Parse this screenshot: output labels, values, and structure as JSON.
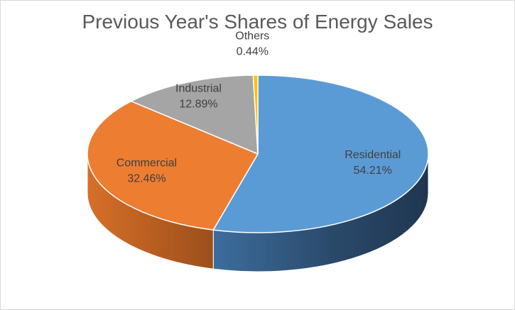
{
  "chart_data": {
    "type": "pie",
    "title": "Previous Year's Shares of Energy Sales",
    "slices": [
      {
        "label": "Residential",
        "value": 54.21,
        "display": "54.21%",
        "color": "#5B9BD5"
      },
      {
        "label": "Commercial",
        "value": 32.46,
        "display": "32.46%",
        "color": "#ED7D31"
      },
      {
        "label": "Industrial",
        "value": 12.89,
        "display": "12.89%",
        "color": "#A5A5A5"
      },
      {
        "label": "Others",
        "value": 0.44,
        "display": "0.44%",
        "color": "#FFC000"
      }
    ],
    "style": "3d",
    "legend": "none"
  }
}
